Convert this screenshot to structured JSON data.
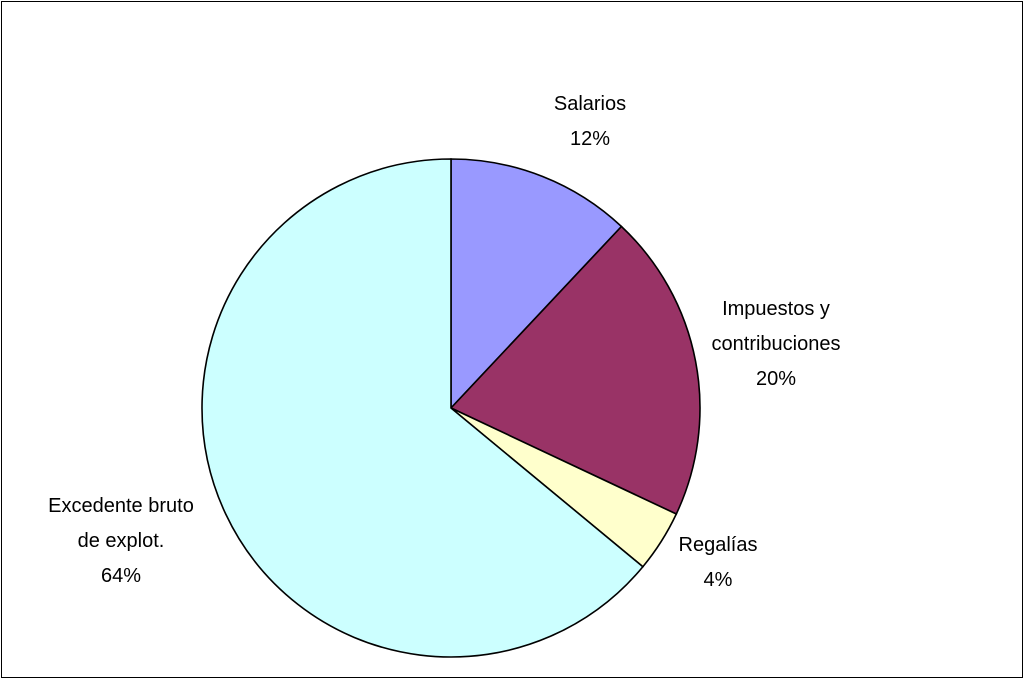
{
  "chart_data": {
    "type": "pie",
    "title": "",
    "slices": [
      {
        "name_lines": [
          "Salarios"
        ],
        "pct_label": "12%",
        "value": 12,
        "color": "#9999FF"
      },
      {
        "name_lines": [
          "Impuestos y",
          "contribuciones"
        ],
        "pct_label": "20%",
        "value": 20,
        "color": "#993366"
      },
      {
        "name_lines": [
          "Regalías"
        ],
        "pct_label": "4%",
        "value": 4,
        "color": "#FFFFCC"
      },
      {
        "name_lines": [
          "Excedente bruto",
          "de explot."
        ],
        "pct_label": "64%",
        "value": 64,
        "color": "#CCFFFF"
      }
    ],
    "start": "12 o'clock",
    "direction": "clockwise",
    "legend": "none"
  }
}
